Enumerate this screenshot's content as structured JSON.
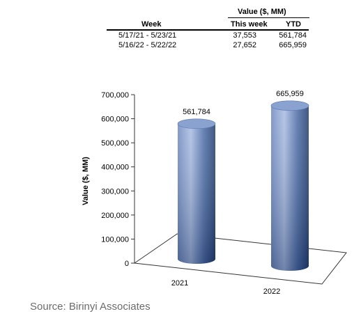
{
  "table": {
    "group_header": "Value ($, MM)",
    "headers": [
      "Week",
      "This week",
      "YTD"
    ],
    "rows": [
      {
        "week": "5/17/21 - 5/23/21",
        "this_week": "37,553",
        "ytd": "561,784"
      },
      {
        "week": "5/16/22 - 5/22/22",
        "this_week": "27,652",
        "ytd": "665,959"
      }
    ]
  },
  "chart_data": {
    "type": "bar",
    "style": "3d-cylinder",
    "categories": [
      "2021",
      "2022"
    ],
    "values": [
      561784,
      665959
    ],
    "data_labels": [
      "561,784",
      "665,959"
    ],
    "ylabel": "Value ($, MM)",
    "ylim": [
      0,
      700000
    ],
    "yticks": [
      0,
      100000,
      200000,
      300000,
      400000,
      500000,
      600000,
      700000
    ],
    "ytick_labels": [
      "0",
      "100,000",
      "200,000",
      "300,000",
      "400,000",
      "500,000",
      "600,000",
      "700,000"
    ],
    "grid": false,
    "legend": "none",
    "colors": {
      "bar_light": "#9fb3dd",
      "bar_mid": "#4d6ea7",
      "bar_dark": "#1f3a6a",
      "top": "#8aa2cf"
    }
  },
  "source": "Source: Birinyi Associates"
}
